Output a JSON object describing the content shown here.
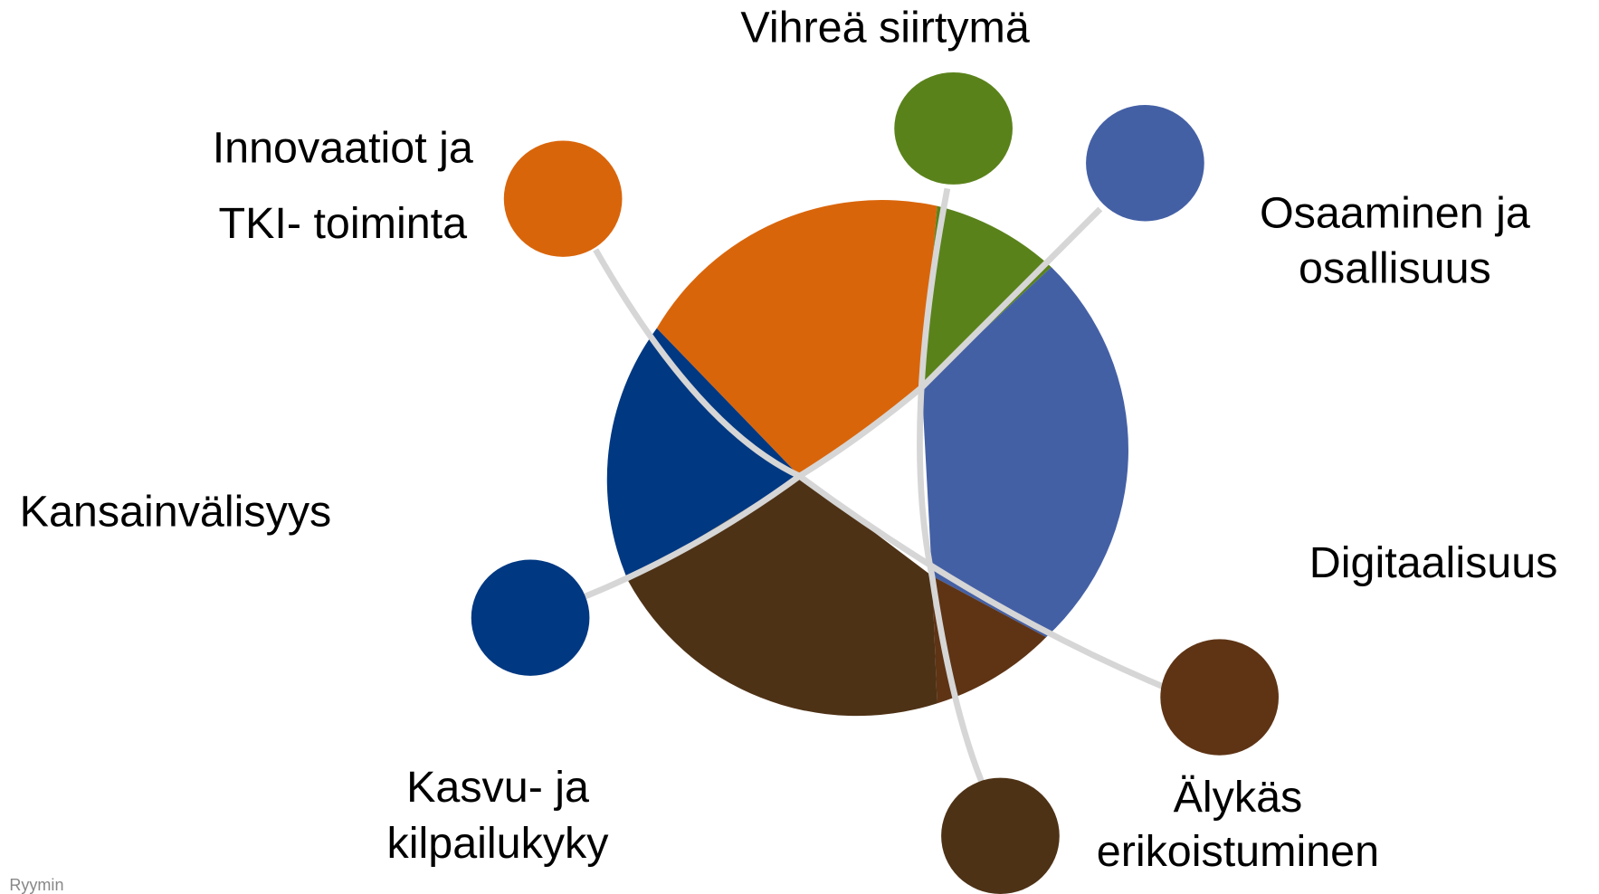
{
  "nodes": [
    {
      "label": [
        "Vihreä siirtymä"
      ]
    },
    {
      "label": [
        "Innovaatiot ja",
        "TKI- toiminta"
      ]
    },
    {
      "label": [
        "Osaaminen ja",
        "osallisuus"
      ]
    },
    {
      "label": [
        "Kansainvälisyys"
      ]
    },
    {
      "label": [
        "Digitaalisuus"
      ]
    },
    {
      "label": [
        "Kasvu- ja",
        "kilpailukyky"
      ]
    },
    {
      "label": [
        "Älykäs",
        "erikoistuminen"
      ]
    }
  ],
  "footer": "Ryymin"
}
